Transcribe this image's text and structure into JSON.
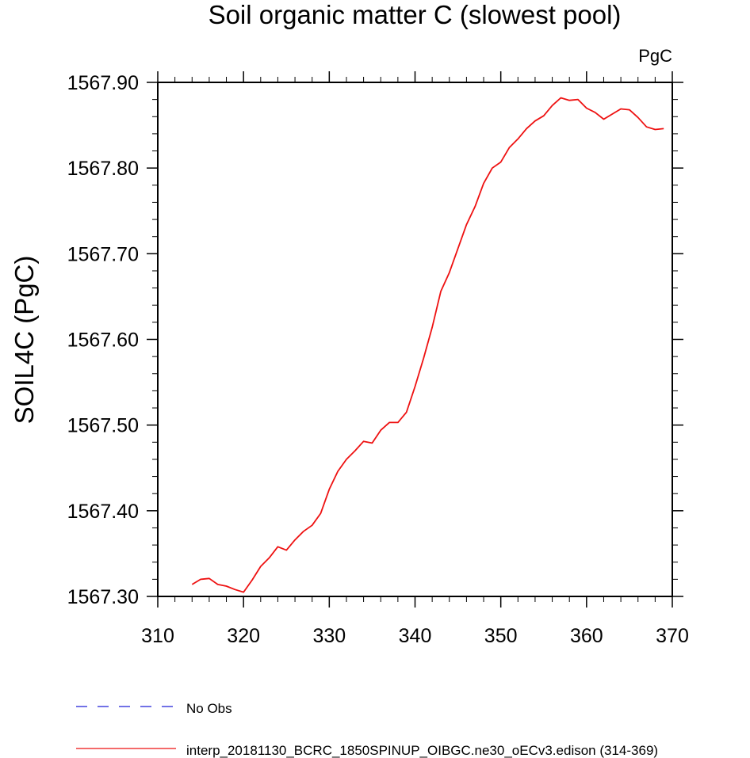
{
  "chart_data": {
    "type": "line",
    "title": "Soil organic matter C (slowest pool)",
    "units_label": "PgC",
    "ylabel": "SOIL4C  (PgC)",
    "xlabel": "",
    "xlim": [
      310,
      370
    ],
    "ylim": [
      1567.3,
      1567.9
    ],
    "x_ticks": [
      310,
      320,
      330,
      340,
      350,
      360,
      370
    ],
    "x_tick_labels": [
      "310",
      "320",
      "330",
      "340",
      "350",
      "360",
      "370"
    ],
    "y_ticks": [
      1567.3,
      1567.4,
      1567.5,
      1567.6,
      1567.7,
      1567.8,
      1567.9
    ],
    "y_tick_labels": [
      "1567.30",
      "1567.40",
      "1567.50",
      "1567.60",
      "1567.70",
      "1567.80",
      "1567.90"
    ],
    "grid": false,
    "legend_position": "bottom",
    "legend": [
      {
        "label": "No Obs",
        "color": "#1f1fd6",
        "style": "dashed"
      },
      {
        "label": "interp_20181130_BCRC_1850SPINUP_OIBGC.ne30_oECv3.edison (314-369)",
        "color": "#ee1111",
        "style": "solid"
      }
    ],
    "series": [
      {
        "name": "interp_20181130_BCRC_1850SPINUP_OIBGC.ne30_oECv3.edison (314-369)",
        "color": "#ee1111",
        "x": [
          314,
          315,
          316,
          317,
          318,
          319,
          320,
          321,
          322,
          323,
          324,
          325,
          326,
          327,
          328,
          329,
          330,
          331,
          332,
          333,
          334,
          335,
          336,
          337,
          338,
          339,
          340,
          341,
          342,
          343,
          344,
          345,
          346,
          347,
          348,
          349,
          350,
          351,
          352,
          353,
          354,
          355,
          356,
          357,
          358,
          359,
          360,
          361,
          362,
          363,
          364,
          365,
          366,
          367,
          368,
          369
        ],
        "values": [
          1567.314,
          1567.32,
          1567.321,
          1567.314,
          1567.312,
          1567.308,
          1567.305,
          1567.319,
          1567.335,
          1567.345,
          1567.358,
          1567.354,
          1567.366,
          1567.376,
          1567.383,
          1567.397,
          1567.425,
          1567.446,
          1567.46,
          1567.47,
          1567.481,
          1567.479,
          1567.494,
          1567.503,
          1567.503,
          1567.515,
          1567.545,
          1567.578,
          1567.614,
          1567.656,
          1567.678,
          1567.706,
          1567.734,
          1567.755,
          1567.782,
          1567.8,
          1567.807,
          1567.824,
          1567.834,
          1567.846,
          1567.855,
          1567.861,
          1567.873,
          1567.882,
          1567.879,
          1567.88,
          1567.87,
          1567.865,
          1567.857,
          1567.863,
          1567.869,
          1567.868,
          1567.859,
          1567.848,
          1567.845,
          1567.846
        ]
      }
    ]
  }
}
